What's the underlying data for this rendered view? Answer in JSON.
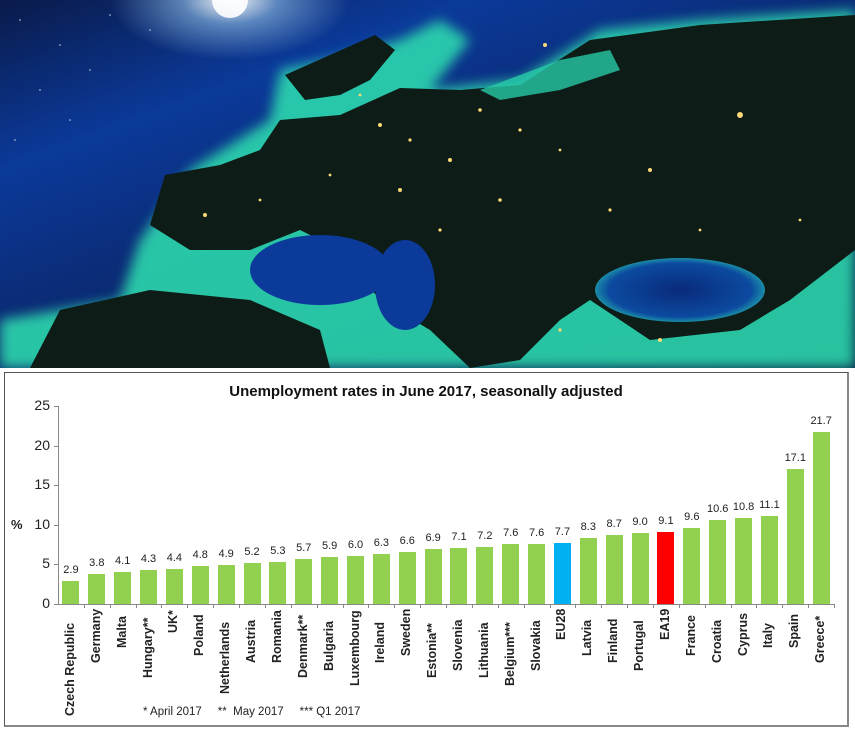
{
  "hero_image": {
    "description": "Satellite night view of Europe with city lights, Mediterranean and Black Sea glowing turquoise",
    "colors": {
      "space": "#061640",
      "ocean": "#0b3a9a",
      "coast_glow": "#2fe0b0",
      "land": "#0c1a14",
      "city_lights": "#ffd878"
    }
  },
  "chart_data": {
    "type": "bar",
    "title": "Unemployment rates in June 2017, seasonally adjusted",
    "xlabel": "",
    "ylabel": "%",
    "ylim": [
      0,
      25
    ],
    "yticks": [
      0,
      5,
      10,
      15,
      20,
      25
    ],
    "grid": false,
    "legend": null,
    "categories": [
      "Czech Republic",
      "Germany",
      "Malta",
      "Hungary**",
      "UK*",
      "Poland",
      "Netherlands",
      "Austria",
      "Romania",
      "Denmark**",
      "Bulgaria",
      "Luxembourg",
      "Ireland",
      "Sweden",
      "Estonia**",
      "Slovenia",
      "Lithuania",
      "Belgium***",
      "Slovakia",
      "EU28",
      "Latvia",
      "Finland",
      "Portugal",
      "EA19",
      "France",
      "Croatia",
      "Cyprus",
      "Italy",
      "Spain",
      "Greece*"
    ],
    "values": [
      2.9,
      3.8,
      4.1,
      4.3,
      4.4,
      4.8,
      4.9,
      5.2,
      5.3,
      5.7,
      5.9,
      6.0,
      6.3,
      6.6,
      6.9,
      7.1,
      7.2,
      7.6,
      7.6,
      7.7,
      8.3,
      8.7,
      9.0,
      9.1,
      9.6,
      10.6,
      10.8,
      11.1,
      17.1,
      21.7
    ],
    "value_labels": [
      "2.9",
      "3.8",
      "4.1",
      "4.3",
      "4.4",
      "4.8",
      "4.9",
      "5.2",
      "5.3",
      "5.7",
      "5.9",
      "6.0",
      "6.3",
      "6.6",
      "6.9",
      "7.1",
      "7.2",
      "7.6",
      "7.6",
      "7.7",
      "8.3",
      "8.7",
      "9.0",
      "9.1",
      "9.6",
      "10.6",
      "10.8",
      "11.1",
      "17.1",
      "21.7"
    ],
    "colors": {
      "default": "#92d050",
      "EU28": "#00b0f0",
      "EA19": "#ff0000"
    },
    "footnote": "* April 2017     **  May 2017     *** Q1 2017"
  }
}
